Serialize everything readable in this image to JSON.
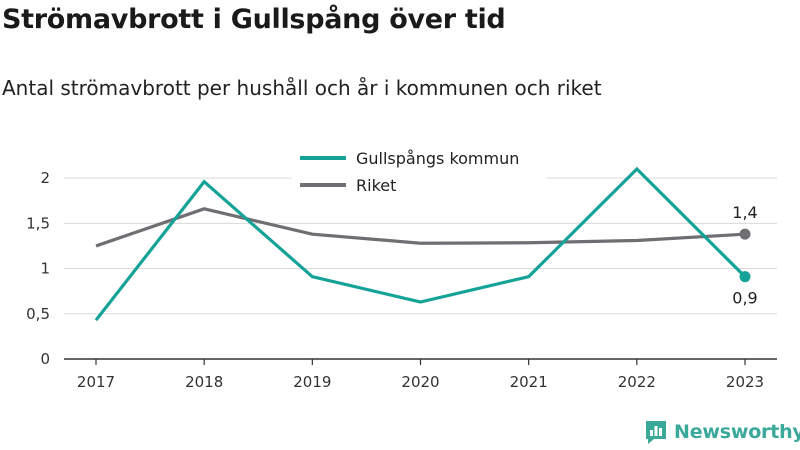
{
  "header": {
    "title": "Strömavbrott i Gullspång över tid",
    "subtitle": "Antal strömavbrott per hushåll och år i kommunen och riket"
  },
  "brand": {
    "name": "Newsworthy",
    "icon": "newsworthy-logo-icon"
  },
  "colors": {
    "kommun": "#14a396",
    "riket": "#6e6e73",
    "grid": "#d9d9d9",
    "axis": "#333333",
    "brand": "#3aa99a"
  },
  "chart_data": {
    "type": "line",
    "x": [
      "2017",
      "2018",
      "2019",
      "2020",
      "2021",
      "2022",
      "2023"
    ],
    "series": [
      {
        "name": "Gullspångs kommun",
        "values": [
          0.43,
          1.96,
          0.91,
          0.63,
          0.91,
          2.1,
          0.91
        ]
      },
      {
        "name": "Riket",
        "values": [
          1.25,
          1.66,
          1.38,
          1.28,
          1.285,
          1.31,
          1.38
        ]
      }
    ],
    "ylim": [
      0,
      2.2
    ],
    "yticks": [
      {
        "value": 0,
        "label": "0"
      },
      {
        "value": 0.5,
        "label": "0,5"
      },
      {
        "value": 1,
        "label": "1"
      },
      {
        "value": 1.5,
        "label": "1,5"
      },
      {
        "value": 2,
        "label": "2"
      }
    ],
    "end_labels": {
      "kommun": "0,9",
      "riket": "1,4"
    },
    "grid": true,
    "legend": "top-center"
  }
}
